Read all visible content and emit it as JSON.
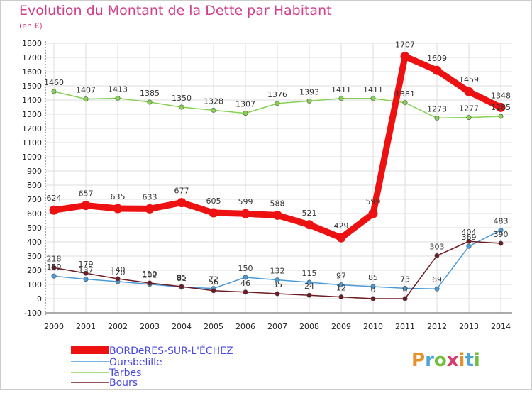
{
  "title": "Evolution du Montant de la Dette par Habitant",
  "subtitle": "(en €)",
  "logo": {
    "text": "Proxiti",
    "letter_colors": [
      "#e8902a",
      "#4aa6d8",
      "#6fbf3a",
      "#d63a6a",
      "#e8902a",
      "#4aa6d8",
      "#6fbf3a"
    ]
  },
  "chart_data": {
    "type": "line",
    "title": "Evolution du Montant de la Dette par Habitant",
    "ylabel": "(en €)",
    "x": [
      "2000",
      "2001",
      "2002",
      "2003",
      "2004",
      "2005",
      "2006",
      "2007",
      "2008",
      "2009",
      "2010",
      "2011",
      "2012",
      "2013",
      "2014"
    ],
    "ylim": [
      -100,
      1800
    ],
    "yticks": [
      -100,
      0,
      100,
      200,
      300,
      400,
      500,
      600,
      700,
      800,
      900,
      1000,
      1100,
      1200,
      1300,
      1400,
      1500,
      1600,
      1700,
      1800
    ],
    "grid": true,
    "legend_position": "bottom-left",
    "series": [
      {
        "name": "BORDeRES-SUR-L'ÉCHEZ",
        "color": "#ee1111",
        "values": [
          624,
          657,
          635,
          633,
          677,
          605,
          599,
          588,
          521,
          429,
          599,
          1707,
          1609,
          1459,
          1348
        ]
      },
      {
        "name": "Oursbelille",
        "color": "#4a9ad8",
        "values": [
          159,
          137,
          120,
          102,
          81,
          72,
          150,
          132,
          115,
          97,
          85,
          73,
          69,
          369,
          483
        ]
      },
      {
        "name": "Tarbes",
        "color": "#86d052",
        "values": [
          1460,
          1407,
          1413,
          1385,
          1350,
          1328,
          1307,
          1376,
          1393,
          1411,
          1411,
          1381,
          1273,
          1277,
          1285
        ]
      },
      {
        "name": "Bours",
        "color": "#6e1a22",
        "values": [
          218,
          179,
          140,
          110,
          85,
          56,
          46,
          35,
          24,
          12,
          0,
          0,
          303,
          404,
          390
        ]
      }
    ]
  }
}
